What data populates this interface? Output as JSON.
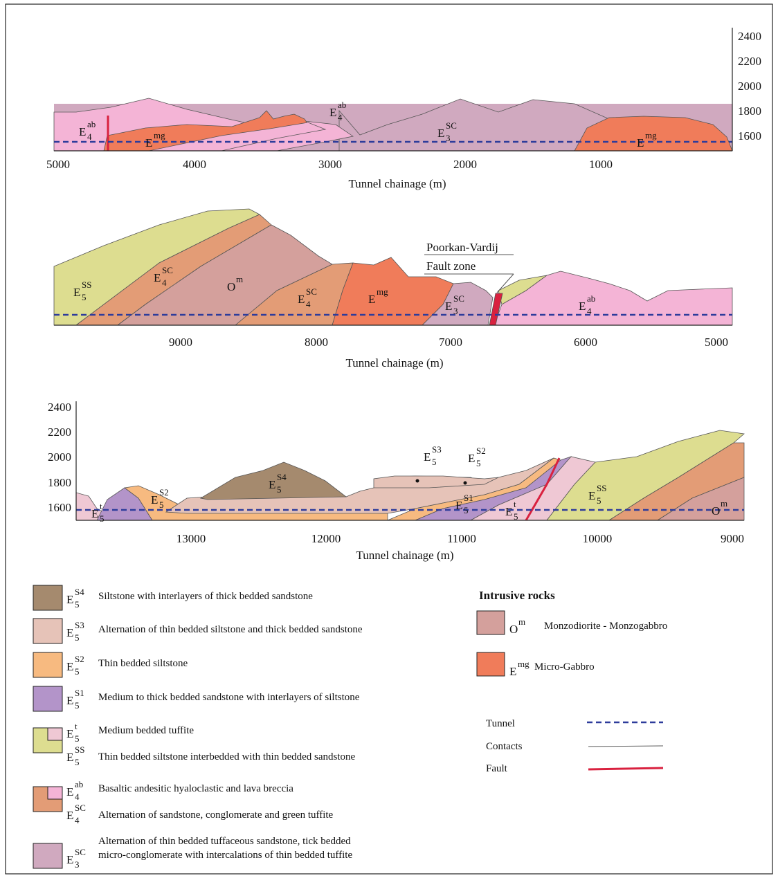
{
  "colors": {
    "E5_S4": "#a58a6e",
    "E5_S3": "#e6c3b8",
    "E5_S2": "#f7ba80",
    "E5_S1": "#b394c9",
    "E5_t": "#efc8d4",
    "E5_SS": "#dddd90",
    "E4_ab": "#f4b4d6",
    "E4_SC": "#e39c76",
    "E3_SC": "#d0a9bf",
    "Om": "#d4a09c",
    "Emg": "#f07c5a",
    "tunnel": "#2e3c9b",
    "fault": "#d9213f",
    "contact": "#555555"
  },
  "sections": [
    {
      "id": "section-1",
      "axis_title": "Tunnel chainage (m)",
      "x_ticks": [
        "5000",
        "4000",
        "3000",
        "2000",
        "1000"
      ],
      "y_ticks": [
        "2400",
        "2200",
        "2000",
        "1800",
        "1600"
      ],
      "labels": [
        {
          "base": "E",
          "sub": "4",
          "sup": "ab"
        },
        {
          "base": "E",
          "sub": "",
          "sup": "mg"
        },
        {
          "base": "E",
          "sub": "4",
          "sup": "ab"
        },
        {
          "base": "E",
          "sub": "3",
          "sup": "SC"
        },
        {
          "base": "E",
          "sub": "",
          "sup": "mg"
        }
      ]
    },
    {
      "id": "section-2",
      "axis_title": "Tunnel chainage (m)",
      "x_ticks": [
        "9000",
        "8000",
        "7000",
        "6000",
        "5000"
      ],
      "fault_label_1": "Poorkan-Vardij",
      "fault_label_2": "Fault zone",
      "labels": [
        {
          "base": "E",
          "sub": "5",
          "sup": "SS"
        },
        {
          "base": "E",
          "sub": "4",
          "sup": "SC"
        },
        {
          "base": "O",
          "sub": "",
          "sup": "m"
        },
        {
          "base": "E",
          "sub": "4",
          "sup": "SC"
        },
        {
          "base": "E",
          "sub": "",
          "sup": "mg"
        },
        {
          "base": "E",
          "sub": "3",
          "sup": "SC"
        },
        {
          "base": "E",
          "sub": "4",
          "sup": "ab"
        }
      ]
    },
    {
      "id": "section-3",
      "axis_title": "Tunnel chainage (m)",
      "x_ticks": [
        "13000",
        "12000",
        "11000",
        "10000",
        "9000"
      ],
      "y_ticks": [
        "2400",
        "2200",
        "2000",
        "1800",
        "1600"
      ],
      "labels": [
        {
          "base": "E",
          "sub": "5",
          "sup": "t"
        },
        {
          "base": "E",
          "sub": "5",
          "sup": "S2"
        },
        {
          "base": "E",
          "sub": "5",
          "sup": "S4"
        },
        {
          "base": "E",
          "sub": "5",
          "sup": "S3"
        },
        {
          "base": "E",
          "sub": "5",
          "sup": "S2"
        },
        {
          "base": "E",
          "sub": "5",
          "sup": "S1"
        },
        {
          "base": "E",
          "sub": "5",
          "sup": "t"
        },
        {
          "base": "E",
          "sub": "5",
          "sup": "SS"
        },
        {
          "base": "O",
          "sub": "",
          "sup": "m"
        }
      ]
    }
  ],
  "legend": {
    "items": [
      {
        "sym": {
          "base": "E",
          "sub": "5",
          "sup": "S4"
        },
        "text": "Siltstone with interlayers of thick bedded sandstone"
      },
      {
        "sym": {
          "base": "E",
          "sub": "5",
          "sup": "S3"
        },
        "text": "Alternation of thin bedded siltstone and thick bedded sandstone"
      },
      {
        "sym": {
          "base": "E",
          "sub": "5",
          "sup": "S2"
        },
        "text": "Thin bedded siltstone"
      },
      {
        "sym": {
          "base": "E",
          "sub": "5",
          "sup": "S1"
        },
        "text": "Medium to thick bedded sandstone with interlayers of siltstone"
      },
      {
        "sym": {
          "base": "E",
          "sub": "5",
          "sup": "t"
        },
        "text": "Medium bedded tuffite"
      },
      {
        "sym": {
          "base": "E",
          "sub": "5",
          "sup": "SS"
        },
        "text": "Thin bedded siltstone interbedded with thin bedded sandstone"
      },
      {
        "sym": {
          "base": "E",
          "sub": "4",
          "sup": "ab"
        },
        "text": "Basaltic andesitic hyaloclastic and lava breccia"
      },
      {
        "sym": {
          "base": "E",
          "sub": "4",
          "sup": "SC"
        },
        "text": "Alternation of sandstone, conglomerate and green tuffite"
      },
      {
        "sym": {
          "base": "E",
          "sub": "3",
          "sup": "SC"
        },
        "text": "Alternation of thin bedded tuffaceous sandstone, tick bedded"
      },
      {
        "sym": null,
        "text": "micro-conglomerate with intercalations of thin bedded tuffite"
      }
    ],
    "intrusive_title": "Intrusive rocks",
    "intrusive": [
      {
        "sym": {
          "base": "O",
          "sub": "",
          "sup": "m"
        },
        "text": "Monzodiorite - Monzogabbro"
      },
      {
        "sym": {
          "base": "E",
          "sub": "",
          "sup": "mg"
        },
        "text": "Micro-Gabbro"
      }
    ],
    "lines": [
      {
        "text": "Tunnel"
      },
      {
        "text": "Contacts"
      },
      {
        "text": "Fault"
      }
    ]
  }
}
